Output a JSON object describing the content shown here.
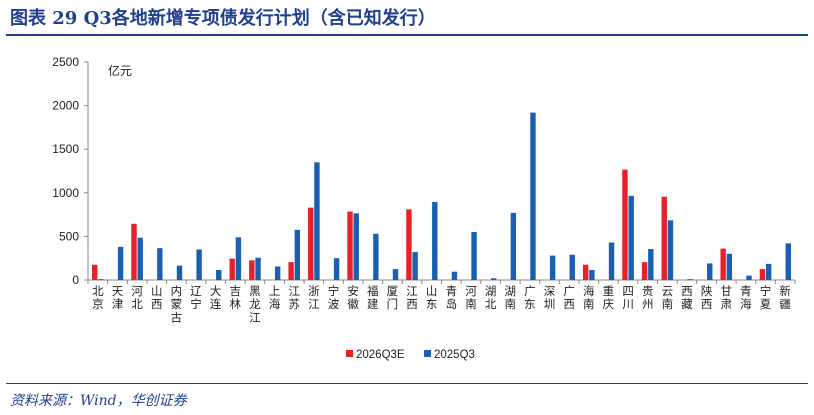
{
  "figure": {
    "title": "图表 29   Q3各地新增专项债发行计划（含已知发行）",
    "source": "资料来源：Wind，华创证券"
  },
  "colors": {
    "series_2026Q3E": "#e8202a",
    "series_2025Q3": "#1a5fb4",
    "title": "#1f3f8f"
  },
  "chart_data": {
    "type": "bar",
    "unit_label": "亿元",
    "ylim": [
      0,
      2500
    ],
    "yticks": [
      0,
      500,
      1000,
      1500,
      2000,
      2500
    ],
    "grid": false,
    "legend_position": "bottom-center",
    "categories": [
      "北京",
      "天津",
      "河北",
      "山西",
      "内蒙古",
      "辽宁",
      "大连",
      "吉林",
      "黑龙江",
      "上海",
      "江苏",
      "浙江",
      "宁波",
      "安徽",
      "福建",
      "厦门",
      "江西",
      "山东",
      "青岛",
      "河南",
      "湖北",
      "湖南",
      "广东",
      "深圳",
      "广西",
      "海南",
      "重庆",
      "四川",
      "贵州",
      "云南",
      "西藏",
      "陕西",
      "甘肃",
      "青海",
      "宁夏",
      "新疆"
    ],
    "series": [
      {
        "name": "2026Q3E",
        "values": [
          175,
          0,
          645,
          0,
          0,
          0,
          0,
          245,
          225,
          0,
          205,
          830,
          0,
          785,
          0,
          0,
          810,
          0,
          0,
          0,
          0,
          0,
          0,
          0,
          0,
          175,
          0,
          1265,
          205,
          955,
          0,
          0,
          360,
          0,
          125,
          0
        ]
      },
      {
        "name": "2025Q3",
        "values": [
          10,
          380,
          485,
          365,
          165,
          350,
          115,
          490,
          255,
          155,
          575,
          1350,
          250,
          765,
          530,
          125,
          320,
          895,
          95,
          550,
          20,
          770,
          1920,
          280,
          290,
          115,
          430,
          965,
          355,
          685,
          10,
          190,
          300,
          50,
          185,
          420
        ]
      }
    ]
  }
}
